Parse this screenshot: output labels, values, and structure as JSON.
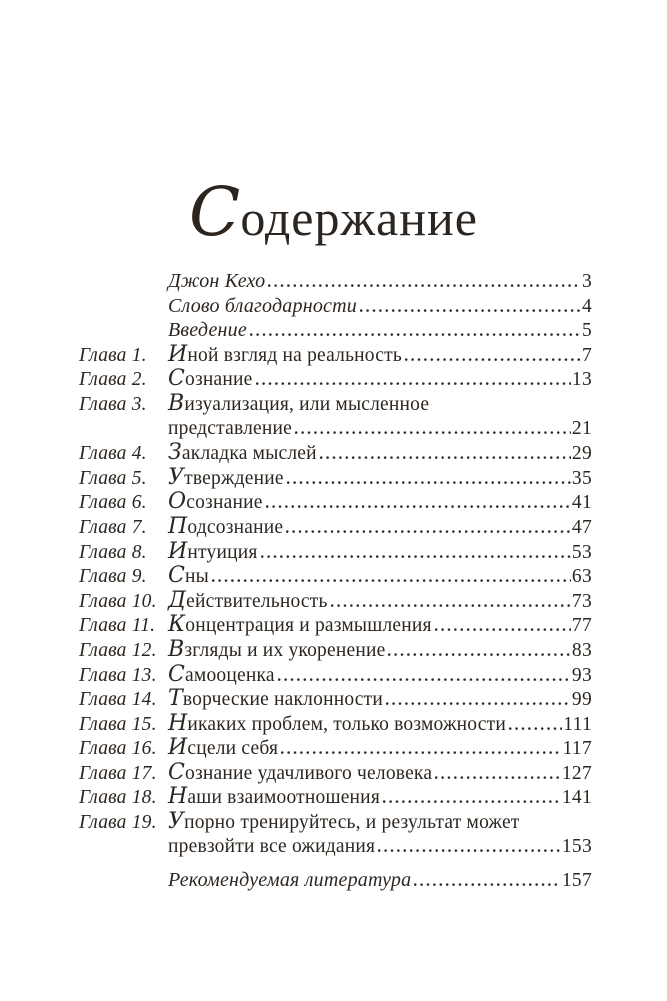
{
  "page": {
    "title": "Содержание",
    "background": "#ffffff",
    "ink_color": "#2d2620"
  },
  "toc": {
    "front_matter": [
      {
        "title": "Джон Кехо",
        "page": "3"
      },
      {
        "title": "Слово благодарности",
        "page": "4"
      },
      {
        "title": "Введение",
        "page": "5"
      }
    ],
    "chapters": [
      {
        "label": "Глава 1.",
        "title": "Иной взгляд на реальность",
        "page": "7"
      },
      {
        "label": "Глава 2.",
        "title": "Сознание",
        "page": "13"
      },
      {
        "label": "Глава 3.",
        "title": "Визуализация, или мысленное",
        "title2": "представление",
        "page": "21"
      },
      {
        "label": "Глава 4.",
        "title": "Закладка мыслей",
        "page": "29"
      },
      {
        "label": "Глава 5.",
        "title": "Утверждение",
        "page": "35"
      },
      {
        "label": "Глава 6.",
        "title": "Осознание",
        "page": "41"
      },
      {
        "label": "Глава 7.",
        "title": "Подсознание",
        "page": "47"
      },
      {
        "label": "Глава 8.",
        "title": "Интуиция",
        "page": "53"
      },
      {
        "label": "Глава 9.",
        "title": "Сны",
        "page": "63"
      },
      {
        "label": "Глава 10.",
        "title": "Действительность",
        "page": "73"
      },
      {
        "label": "Глава 11.",
        "title": "Концентрация и размышления",
        "page": "77"
      },
      {
        "label": "Глава 12.",
        "title": "Взгляды и их укоренение",
        "page": "83"
      },
      {
        "label": "Глава 13.",
        "title": "Самооценка",
        "page": "93"
      },
      {
        "label": "Глава 14.",
        "title": "Творческие наклонности",
        "page": "99"
      },
      {
        "label": "Глава 15.",
        "title": "Никаких проблем, только возможности",
        "page": "111"
      },
      {
        "label": "Глава 16.",
        "title": "Исцели себя",
        "page": "117"
      },
      {
        "label": "Глава 17.",
        "title": "Сознание удачливого человека",
        "page": "127"
      },
      {
        "label": "Глава 18.",
        "title": "Наши взаимоотношения",
        "page": "141"
      },
      {
        "label": "Глава 19.",
        "title": "Упорно тренируйтесь, и результат может",
        "title2": "превзойти все ожидания",
        "page": "153"
      }
    ],
    "closing": [
      {
        "title": "Рекомендуемая литература",
        "page": "157"
      }
    ]
  }
}
